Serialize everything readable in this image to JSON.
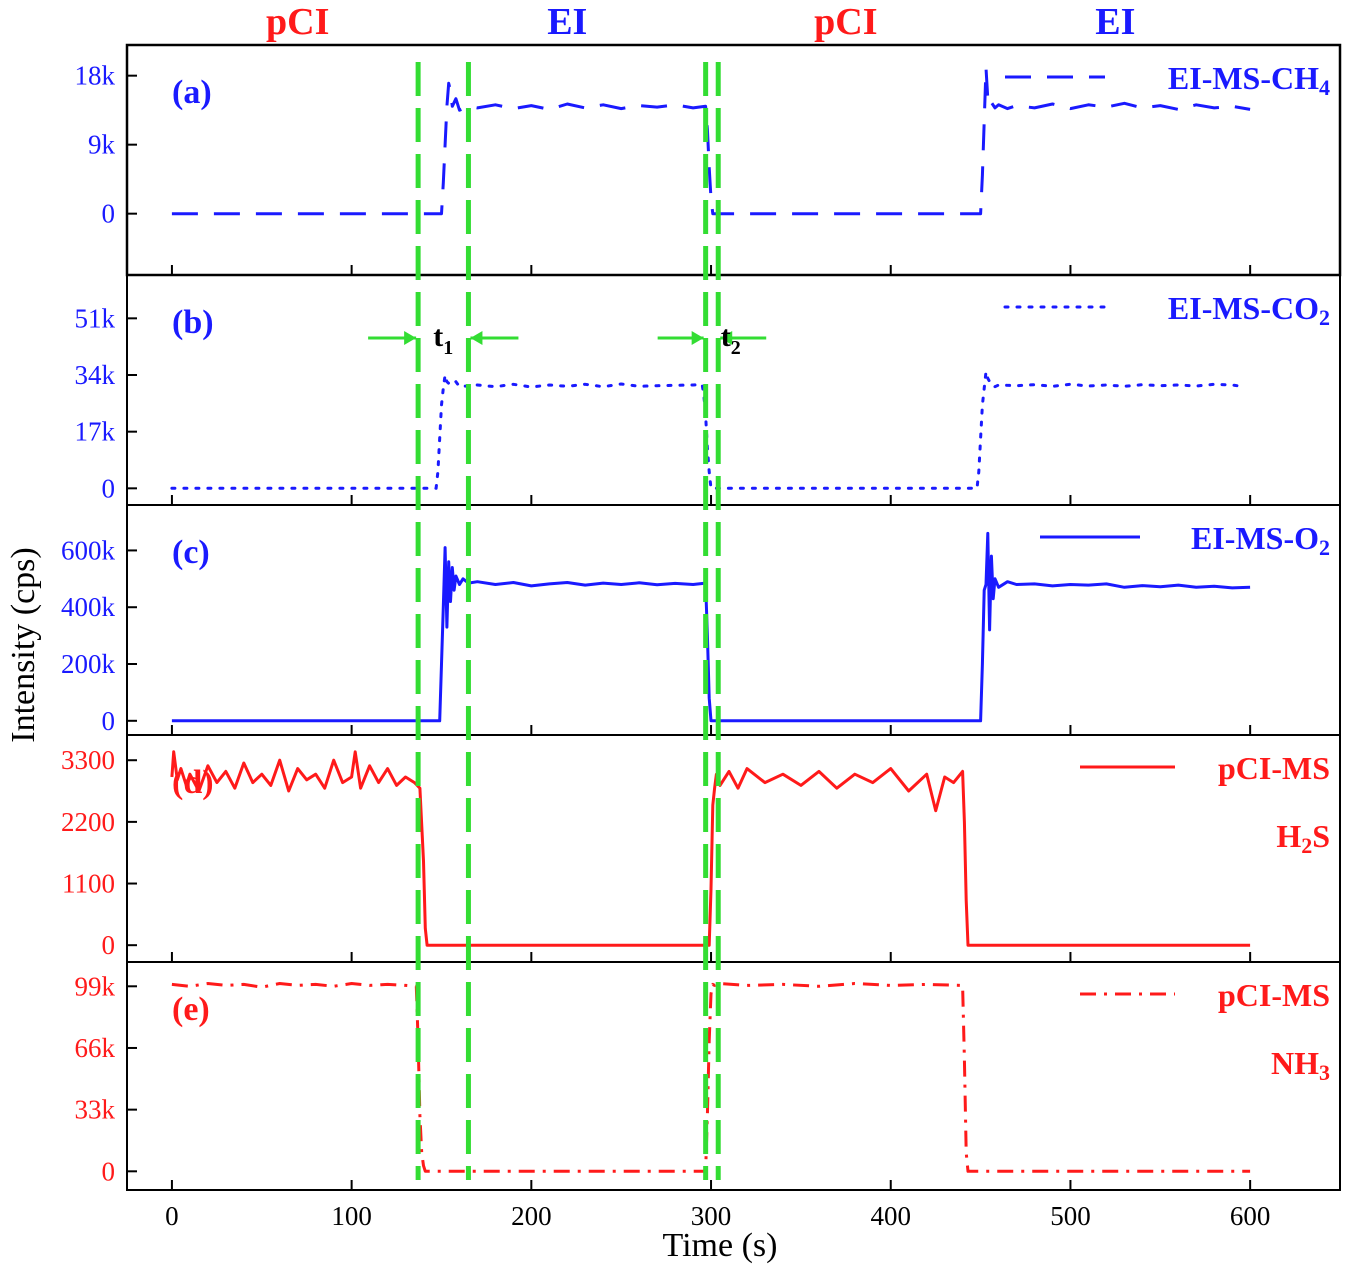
{
  "chart_data": {
    "type": "line",
    "xlabel": "Time (s)",
    "ylabel": "Intensity (cps)",
    "xlim": [
      -25,
      650
    ],
    "x_ticks": [
      0,
      100,
      200,
      300,
      400,
      500,
      600
    ],
    "x_tick_labels": [
      "0",
      "100",
      "200",
      "300",
      "400",
      "500",
      "600"
    ],
    "mode_labels": [
      {
        "text": "pCI",
        "x": 70,
        "color": "#ff1a1a"
      },
      {
        "text": "EI",
        "x": 220,
        "color": "#1a1aff"
      },
      {
        "text": "pCI",
        "x": 375,
        "color": "#ff1a1a"
      },
      {
        "text": "EI",
        "x": 525,
        "color": "#1a1aff"
      }
    ],
    "switch_lines": {
      "color": "#33dd33",
      "x": [
        137,
        165,
        297,
        304
      ],
      "markers": [
        {
          "text": "t",
          "sub": "1",
          "x": 151
        },
        {
          "text": "t",
          "sub": "2",
          "x": 311
        }
      ]
    },
    "panels": [
      {
        "label": "(a)",
        "legend_main": "EI-MS-CH",
        "legend_sub": "4",
        "legend_line2": "",
        "line_style": "dashed",
        "color": "#1a1aff",
        "ylim": [
          -8000,
          22000
        ],
        "y_ticks": [
          0,
          9000,
          18000
        ],
        "y_tick_labels": [
          "0",
          "9k",
          "18k"
        ],
        "x": [
          0,
          150,
          151,
          152,
          153,
          154,
          155,
          156,
          158,
          160,
          165,
          170,
          180,
          190,
          200,
          210,
          220,
          230,
          240,
          250,
          260,
          270,
          280,
          290,
          297,
          298,
          299,
          300,
          301,
          302,
          450,
          451,
          452,
          453,
          454,
          455,
          456,
          458,
          460,
          465,
          470,
          480,
          490,
          500,
          510,
          520,
          530,
          540,
          550,
          560,
          570,
          580,
          590,
          600
        ],
        "y": [
          0,
          0,
          4000,
          9000,
          14000,
          17000,
          16000,
          14000,
          15000,
          13500,
          14000,
          13800,
          14200,
          13700,
          14100,
          13600,
          14300,
          13800,
          14200,
          13700,
          14100,
          13900,
          14200,
          13800,
          14000,
          11000,
          6000,
          2000,
          0,
          0,
          0,
          5000,
          12000,
          19000,
          15000,
          14000,
          14500,
          13800,
          14200,
          13700,
          14100,
          13800,
          14300,
          13700,
          14200,
          13900,
          14400,
          13800,
          14100,
          13600,
          14200,
          13800,
          14000,
          13600
        ]
      },
      {
        "label": "(b)",
        "legend_main": "EI-MS-CO",
        "legend_sub": "2",
        "legend_line2": "",
        "line_style": "dotted",
        "color": "#1a1aff",
        "ylim": [
          -5000,
          64000
        ],
        "y_ticks": [
          0,
          17000,
          34000,
          51000
        ],
        "y_tick_labels": [
          "0",
          "17k",
          "34k",
          "51k"
        ],
        "x": [
          0,
          147,
          148,
          149,
          150,
          151,
          152,
          153,
          155,
          158,
          160,
          170,
          180,
          190,
          200,
          210,
          220,
          230,
          240,
          250,
          260,
          270,
          280,
          290,
          295,
          296,
          297,
          298,
          299,
          300,
          302,
          448,
          449,
          450,
          451,
          452,
          453,
          454,
          456,
          458,
          460,
          470,
          480,
          490,
          500,
          510,
          520,
          530,
          540,
          550,
          560,
          570,
          580,
          590,
          595
        ],
        "y": [
          0,
          0,
          5000,
          15000,
          25000,
          30000,
          34000,
          32000,
          31000,
          32000,
          30500,
          31000,
          30500,
          31200,
          30400,
          31000,
          30600,
          31200,
          30500,
          31300,
          30600,
          30800,
          30900,
          31000,
          31200,
          28000,
          22000,
          12000,
          5000,
          0,
          0,
          0,
          5000,
          15000,
          25000,
          30000,
          35000,
          33000,
          31000,
          30500,
          31000,
          30800,
          31100,
          30600,
          31200,
          30700,
          31000,
          30600,
          31100,
          30800,
          31000,
          30700,
          31200,
          31000,
          30600
        ]
      },
      {
        "label": "(c)",
        "legend_main": "EI-MS-O",
        "legend_sub": "2",
        "legend_line2": "",
        "line_style": "solid",
        "color": "#1a1aff",
        "ylim": [
          -50000,
          760000
        ],
        "y_ticks": [
          0,
          200000,
          400000,
          600000
        ],
        "y_tick_labels": [
          "0",
          "200k",
          "400k",
          "600k"
        ],
        "x": [
          0,
          149,
          150,
          151,
          152,
          153,
          154,
          155,
          156,
          157,
          158,
          160,
          162,
          165,
          170,
          180,
          190,
          200,
          210,
          220,
          230,
          240,
          250,
          260,
          270,
          280,
          290,
          297,
          298,
          299,
          300,
          450,
          451,
          452,
          453,
          454,
          455,
          456,
          457,
          458,
          460,
          465,
          470,
          480,
          490,
          500,
          510,
          520,
          530,
          540,
          550,
          560,
          570,
          580,
          590,
          600
        ],
        "y": [
          0,
          0,
          200000,
          400000,
          610000,
          330000,
          560000,
          420000,
          540000,
          460000,
          510000,
          480000,
          500000,
          485000,
          490000,
          480000,
          487000,
          475000,
          482000,
          487000,
          478000,
          485000,
          480000,
          486000,
          479000,
          484000,
          480000,
          485000,
          300000,
          80000,
          0,
          0,
          200000,
          460000,
          480000,
          660000,
          320000,
          580000,
          430000,
          500000,
          470000,
          490000,
          480000,
          482000,
          475000,
          480000,
          478000,
          482000,
          470000,
          476000,
          472000,
          478000,
          470000,
          474000,
          468000,
          470000
        ]
      },
      {
        "label": "(d)",
        "legend_main": "pCI-MS",
        "legend_sub": "",
        "legend_line2": "H",
        "legend_line2_sub": "2",
        "legend_line2_tail": "S",
        "line_style": "solid",
        "color": "#ff1a1a",
        "ylim": [
          -300,
          3750
        ],
        "y_ticks": [
          0,
          1100,
          2200,
          3300
        ],
        "y_tick_labels": [
          "0",
          "1100",
          "2200",
          "3300"
        ],
        "x": [
          0,
          1,
          3,
          5,
          8,
          10,
          15,
          20,
          25,
          30,
          35,
          40,
          45,
          50,
          55,
          60,
          65,
          70,
          75,
          80,
          85,
          90,
          95,
          100,
          102,
          105,
          110,
          115,
          120,
          125,
          130,
          135,
          138,
          140,
          141,
          142,
          299,
          300,
          301,
          302,
          303,
          305,
          310,
          315,
          320,
          330,
          340,
          350,
          360,
          370,
          380,
          390,
          400,
          410,
          420,
          425,
          430,
          435,
          440,
          441,
          442,
          443,
          600
        ],
        "y": [
          3000,
          3450,
          2950,
          3150,
          2850,
          3050,
          2750,
          3200,
          2900,
          3100,
          2800,
          3250,
          2900,
          3050,
          2850,
          3300,
          2750,
          3150,
          2950,
          3050,
          2800,
          3300,
          2900,
          3000,
          3450,
          2800,
          3200,
          2900,
          3150,
          2850,
          3000,
          2900,
          2800,
          1500,
          300,
          0,
          0,
          1000,
          2500,
          2800,
          3050,
          2850,
          3100,
          2800,
          3150,
          2900,
          3050,
          2850,
          3100,
          2800,
          3050,
          2900,
          3150,
          2750,
          3050,
          2400,
          3000,
          2900,
          3100,
          2200,
          800,
          0,
          0
        ]
      },
      {
        "label": "(e)",
        "legend_main": "pCI-MS",
        "legend_sub": "",
        "legend_line2": "NH",
        "legend_line2_sub": "3",
        "legend_line2_tail": "",
        "line_style": "dashdot",
        "color": "#ff1a1a",
        "ylim": [
          -10000,
          112000
        ],
        "y_ticks": [
          0,
          33000,
          66000,
          99000
        ],
        "y_tick_labels": [
          "0",
          "33k",
          "66k",
          "99k"
        ],
        "x": [
          0,
          10,
          20,
          30,
          40,
          50,
          60,
          70,
          80,
          90,
          100,
          110,
          120,
          130,
          136,
          137,
          138,
          139,
          140,
          141,
          142,
          297,
          298,
          299,
          300,
          301,
          302,
          305,
          320,
          340,
          360,
          380,
          400,
          420,
          440,
          441,
          442,
          443,
          600
        ],
        "y": [
          100000,
          99000,
          100500,
          99500,
          100000,
          98500,
          100500,
          99500,
          100000,
          99000,
          100500,
          99500,
          100000,
          99500,
          99000,
          70000,
          30000,
          10000,
          3000,
          0,
          0,
          0,
          30000,
          70000,
          95000,
          100000,
          99500,
          100500,
          99500,
          100000,
          99000,
          100500,
          99500,
          100000,
          99500,
          60000,
          10000,
          0,
          0
        ]
      }
    ]
  }
}
